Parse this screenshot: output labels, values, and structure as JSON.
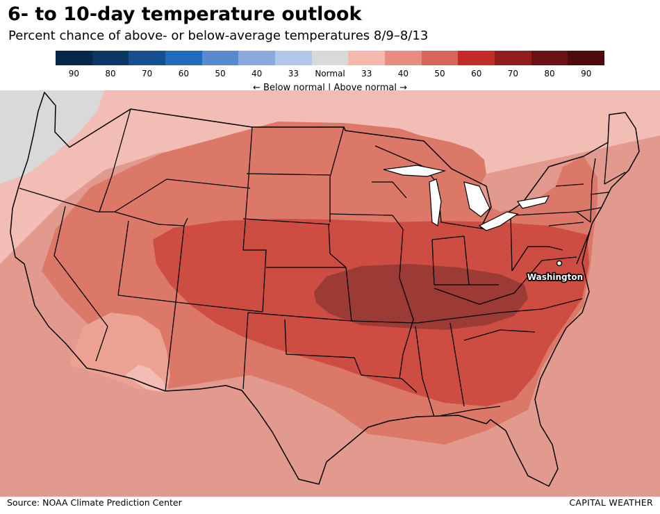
{
  "header": {
    "title": "6- to 10-day temperature outlook",
    "subtitle": "Percent chance of above- or below-average temperatures 8/9–8/13"
  },
  "legend": {
    "bins": [
      {
        "label": "90",
        "color": "#08254a"
      },
      {
        "label": "80",
        "color": "#0d3763"
      },
      {
        "label": "70",
        "color": "#164f8e"
      },
      {
        "label": "60",
        "color": "#1f6bbd"
      },
      {
        "label": "50",
        "color": "#5a8acd"
      },
      {
        "label": "40",
        "color": "#8ca9dc"
      },
      {
        "label": "33",
        "color": "#b1c8eb"
      },
      {
        "label": "Normal",
        "color": "#d9d9d9"
      },
      {
        "label": "33",
        "color": "#f4b8ae"
      },
      {
        "label": "40",
        "color": "#e68c80"
      },
      {
        "label": "50",
        "color": "#d6655a"
      },
      {
        "label": "60",
        "color": "#c22c26"
      },
      {
        "label": "70",
        "color": "#901e1e"
      },
      {
        "label": "80",
        "color": "#691214"
      },
      {
        "label": "90",
        "color": "#4c0b0d"
      }
    ],
    "caption": "← Below normal | Above normal →"
  },
  "map": {
    "city": {
      "name": "Washington"
    }
  },
  "footer": {
    "source": "Source: NOAA Climate Prediction Center",
    "brand": "CAPITAL WEATHER"
  }
}
